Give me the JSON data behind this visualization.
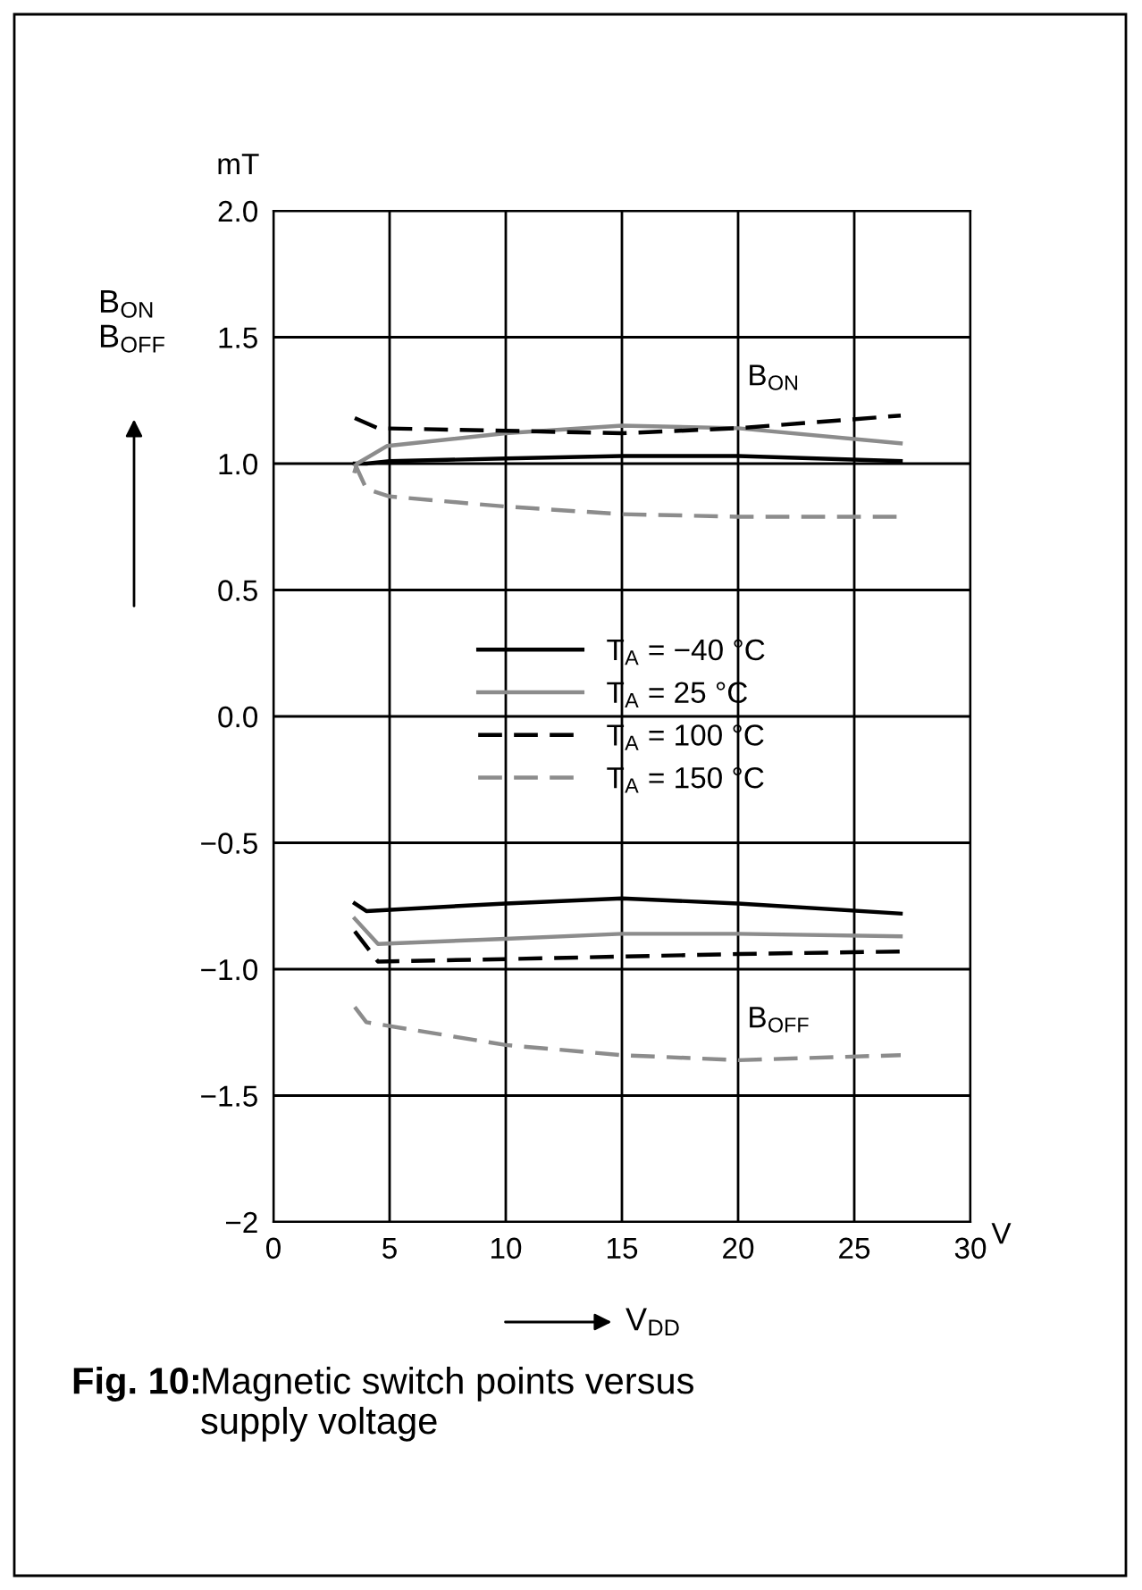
{
  "chart_data": {
    "type": "line",
    "title": "Fig. 10:",
    "subtitle": "Magnetic switch points versus supply voltage",
    "xlabel": "V$_{DD}$",
    "ylabel": "B$_{ON}$\nB$_{OFF}$",
    "annotations": [
      "mT",
      "V",
      "B$_{ON}$",
      "B$_{OFF}$"
    ],
    "xlim": [
      0,
      30
    ],
    "xticks": [
      0,
      5,
      10,
      15,
      20,
      25,
      30
    ],
    "ylim": [
      -2,
      2
    ],
    "yticks": [
      {
        "value": -2,
        "label": "−2"
      },
      {
        "value": -1.5,
        "label": "−1.5"
      },
      {
        "value": -1,
        "label": "−1.0"
      },
      {
        "value": -0.5,
        "label": "−0.5"
      },
      {
        "value": 0,
        "label": "0.0"
      },
      {
        "value": 0.5,
        "label": "0.5"
      },
      {
        "value": 1,
        "label": "1.0"
      },
      {
        "value": 1.5,
        "label": "1.5"
      },
      {
        "value": 2,
        "label": "2.0"
      }
    ],
    "grid": true,
    "legend": "center",
    "marker": "none",
    "series": [
      {
        "name": "T$_{A}$ = −40 °C",
        "color": "#000000",
        "line_style": "solid",
        "x": [
          3.5,
          4,
          5,
          10,
          15,
          20,
          27
        ],
        "values": [
          1.0,
          1.0,
          1.01,
          1.02,
          1.03,
          1.03,
          1.01
        ]
      },
      {
        "name": "T$_{A}$ = 25 °C",
        "color": "#8c8c8c",
        "line_style": "solid",
        "x": [
          3.5,
          3.6,
          4.9,
          10,
          15,
          20,
          27
        ],
        "values": [
          0.97,
          1.0,
          1.07,
          1.12,
          1.15,
          1.14,
          1.08
        ]
      },
      {
        "name": "T$_{A}$ = 100 °C",
        "color": "#000000",
        "line_style": "dashed",
        "x": [
          3.5,
          4.5,
          10,
          15,
          20,
          27
        ],
        "values": [
          1.18,
          1.14,
          1.13,
          1.12,
          1.14,
          1.19
        ]
      },
      {
        "name": "T$_{A}$ = 150 °C",
        "color": "#8c8c8c",
        "line_style": "dashed",
        "x": [
          3.5,
          4,
          5,
          10,
          15,
          20,
          27
        ],
        "values": [
          1.0,
          0.9,
          0.87,
          0.83,
          0.8,
          0.79,
          0.79
        ]
      },
      {
        "color": "#000000",
        "line_style": "solid",
        "x": [
          3.5,
          4,
          10,
          15,
          20,
          27
        ],
        "values": [
          -0.74,
          -0.77,
          -0.74,
          -0.72,
          -0.74,
          -0.78
        ]
      },
      {
        "color": "#8c8c8c",
        "line_style": "solid",
        "x": [
          3.5,
          4.5,
          10,
          15,
          20,
          27
        ],
        "values": [
          -0.8,
          -0.9,
          -0.88,
          -0.86,
          -0.86,
          -0.87
        ]
      },
      {
        "color": "#000000",
        "line_style": "dashed",
        "x": [
          3.5,
          4.5,
          10,
          15,
          20,
          27
        ],
        "values": [
          -0.85,
          -0.97,
          -0.96,
          -0.95,
          -0.94,
          -0.93
        ]
      },
      {
        "color": "#8c8c8c",
        "line_style": "dashed",
        "x": [
          3.5,
          4,
          10,
          15,
          20,
          27
        ],
        "values": [
          -1.15,
          -1.21,
          -1.3,
          -1.34,
          -1.36,
          -1.34
        ]
      }
    ]
  }
}
